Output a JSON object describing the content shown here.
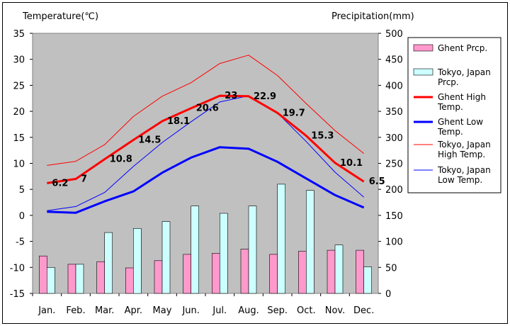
{
  "chart_data": {
    "type": "bar",
    "xlabel": "",
    "categories": [
      "Jan.",
      "Feb.",
      "Mar.",
      "Apr.",
      "May",
      "Jun.",
      "Jul.",
      "Aug.",
      "Sep.",
      "Oct.",
      "Nov.",
      "Dec."
    ],
    "ylabel_left": "Temperature(℃)",
    "ylabel_right": "Precipitation(mm)",
    "ylim_left": [
      -15,
      35
    ],
    "yticks_left": [
      35,
      30,
      25,
      20,
      15,
      10,
      5,
      0,
      -5,
      -10,
      -15
    ],
    "ylim_right": [
      0,
      500
    ],
    "yticks_right": [
      500,
      450,
      400,
      350,
      300,
      250,
      200,
      150,
      100,
      50,
      0
    ],
    "grid": false,
    "legend_position": "right",
    "series": [
      {
        "name": "Ghent Prcp.",
        "kind": "bar",
        "axis": "right",
        "color": "#ff99cc",
        "values": [
          72,
          56,
          61,
          49,
          63,
          75,
          77,
          85,
          75,
          81,
          83,
          83
        ]
      },
      {
        "name": "Tokyo, Japan Prcp.",
        "kind": "bar",
        "axis": "right",
        "color": "#ccffff",
        "values": [
          50,
          56,
          117,
          125,
          138,
          168,
          154,
          168,
          210,
          198,
          93,
          51
        ]
      },
      {
        "name": "Ghent High Temp.",
        "kind": "line",
        "axis": "left",
        "color": "#ff0000",
        "width": "thick",
        "values": [
          6.2,
          7,
          10.8,
          14.5,
          18.1,
          20.6,
          23,
          22.9,
          19.7,
          15.3,
          10.1,
          6.5
        ],
        "labels": [
          "6.2",
          "7",
          "10.8",
          "14.5",
          "18.1",
          "20.6",
          "23",
          "22.9",
          "19.7",
          "15.3",
          "10.1",
          "6.5"
        ]
      },
      {
        "name": "Ghent Low Temp.",
        "kind": "line",
        "axis": "left",
        "color": "#0000ff",
        "width": "thick",
        "values": [
          0.7,
          0.5,
          2.7,
          4.6,
          8.2,
          11.1,
          13.1,
          12.8,
          10.3,
          7.1,
          3.9,
          1.5
        ]
      },
      {
        "name": "Tokyo, Japan High Temp.",
        "kind": "line",
        "axis": "left",
        "color": "#ff0000",
        "width": "thin",
        "values": [
          9.6,
          10.4,
          13.6,
          19.0,
          22.9,
          25.5,
          29.2,
          30.8,
          26.9,
          21.5,
          16.3,
          11.9
        ]
      },
      {
        "name": "Tokyo, Japan Low Temp.",
        "kind": "line",
        "axis": "left",
        "color": "#0000ff",
        "width": "thin",
        "values": [
          0.9,
          1.7,
          4.4,
          9.4,
          14.0,
          18.0,
          21.8,
          23.0,
          19.7,
          14.2,
          8.3,
          3.5
        ]
      }
    ]
  }
}
